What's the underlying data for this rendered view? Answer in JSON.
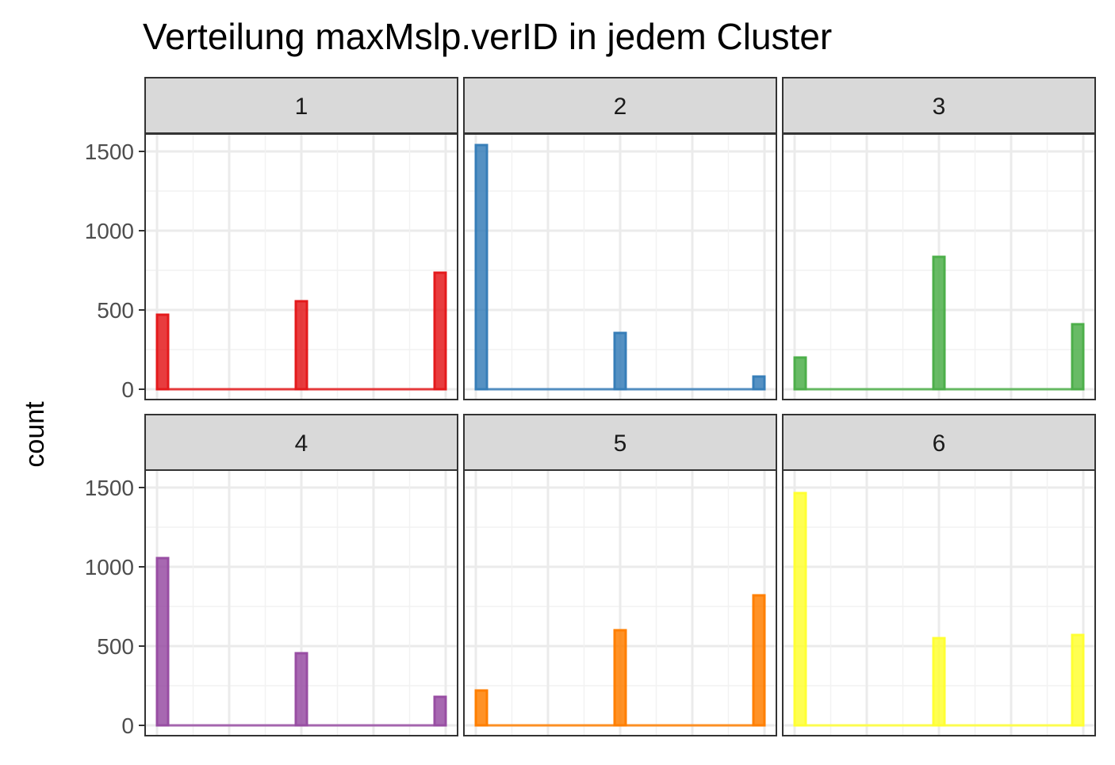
{
  "chart_data": {
    "type": "histogram-facets",
    "title": "Verteilung maxMslp.verID in jedem Cluster",
    "xlabel": "",
    "ylabel": "count",
    "ylim": [
      0,
      1900
    ],
    "yticks": [
      0,
      500,
      1000,
      1500
    ],
    "grid": true,
    "facets": [
      {
        "label": "1",
        "color": "#E41A1C",
        "values": [
          470,
          555,
          735
        ]
      },
      {
        "label": "2",
        "color": "#377EB8",
        "values": [
          1540,
          355,
          80
        ]
      },
      {
        "label": "3",
        "color": "#4DAF4A",
        "values": [
          200,
          835,
          410
        ]
      },
      {
        "label": "4",
        "color": "#984EA3",
        "values": [
          1055,
          455,
          180
        ]
      },
      {
        "label": "5",
        "color": "#FF7F00",
        "values": [
          220,
          600,
          820
        ]
      },
      {
        "label": "6",
        "color": "#FFFF33",
        "values": [
          1465,
          550,
          570
        ]
      }
    ]
  }
}
